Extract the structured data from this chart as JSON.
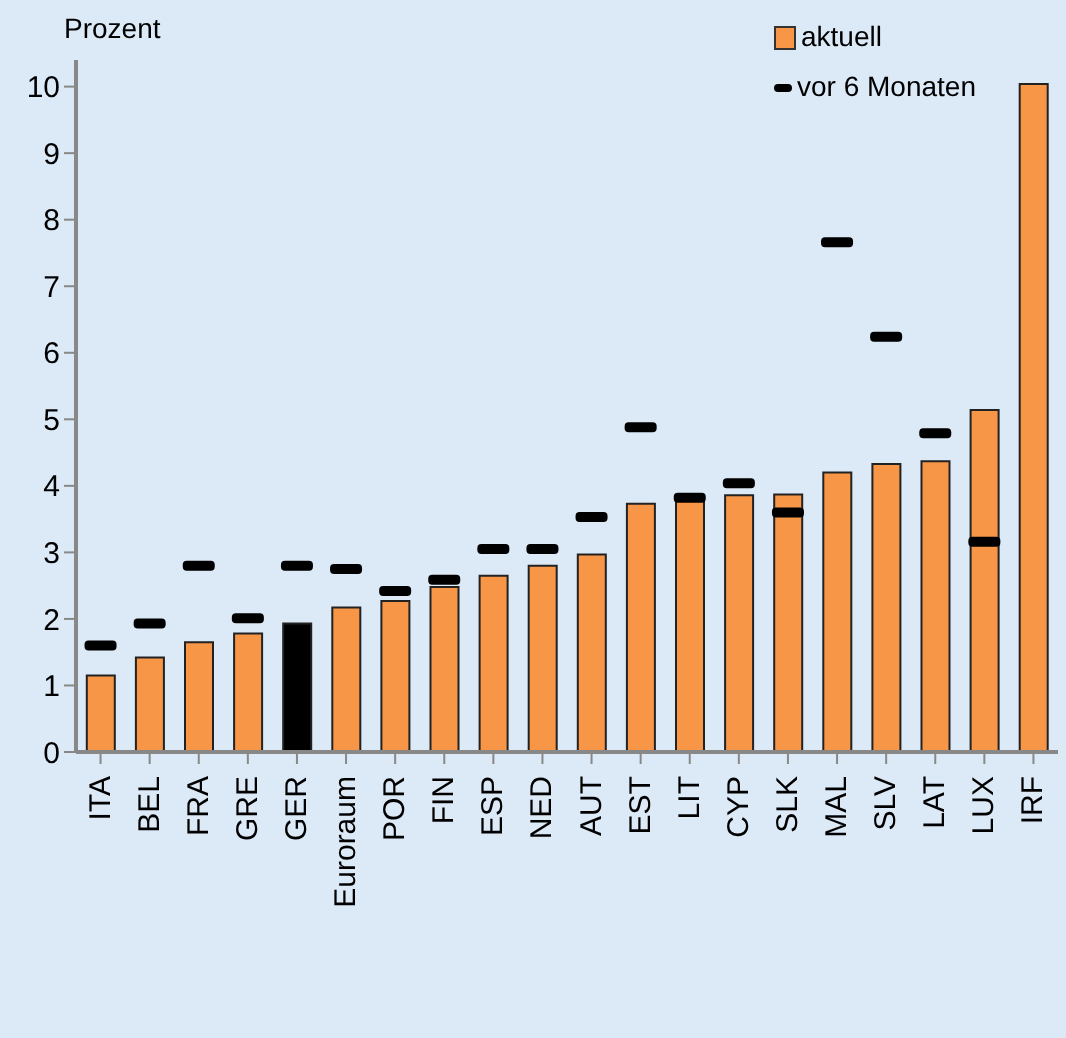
{
  "chart_data": {
    "type": "bar",
    "ylabel": "Prozent",
    "categories": [
      "ITA",
      "BEL",
      "FRA",
      "GRE",
      "GER",
      "Euroraum",
      "POR",
      "FIN",
      "ESP",
      "NED",
      "AUT",
      "EST",
      "LIT",
      "CYP",
      "SLK",
      "MAL",
      "SLV",
      "LAT",
      "LUX",
      "IRF"
    ],
    "series": [
      {
        "name": "aktuell",
        "color": "#f79646",
        "colors": [
          "#f79646",
          "#f79646",
          "#f79646",
          "#f79646",
          "#000000",
          "#f79646",
          "#f79646",
          "#f79646",
          "#f79646",
          "#f79646",
          "#f79646",
          "#f79646",
          "#f79646",
          "#f79646",
          "#f79646",
          "#f79646",
          "#f79646",
          "#f79646",
          "#f79646",
          "#f79646"
        ],
        "values": [
          1.15,
          1.42,
          1.65,
          1.78,
          1.93,
          2.17,
          2.27,
          2.48,
          2.65,
          2.8,
          2.97,
          3.73,
          3.8,
          3.86,
          3.87,
          4.2,
          4.33,
          4.37,
          5.14,
          10.04
        ]
      },
      {
        "name": "vor 6 Monaten",
        "type": "scatter",
        "color": "#000000",
        "x": [
          "ITA",
          "BEL",
          "FRA",
          "GRE",
          "GER",
          "Euroraum",
          "POR",
          "FIN",
          "ESP",
          "NED",
          "AUT",
          "EST",
          "LIT",
          "CYP",
          "SLK",
          "MAL",
          "SLV",
          "LAT",
          "LUX"
        ],
        "values": [
          1.6,
          1.93,
          2.8,
          2.01,
          2.8,
          2.75,
          2.42,
          2.59,
          3.05,
          3.05,
          3.53,
          4.88,
          3.82,
          4.04,
          3.6,
          7.66,
          6.24,
          4.79,
          3.16
        ]
      }
    ],
    "ylim": [
      0,
      10.4
    ],
    "yticks": [
      0,
      1,
      2,
      3,
      4,
      5,
      6,
      7,
      8,
      9,
      10
    ],
    "grid": false,
    "legend": "top right"
  }
}
